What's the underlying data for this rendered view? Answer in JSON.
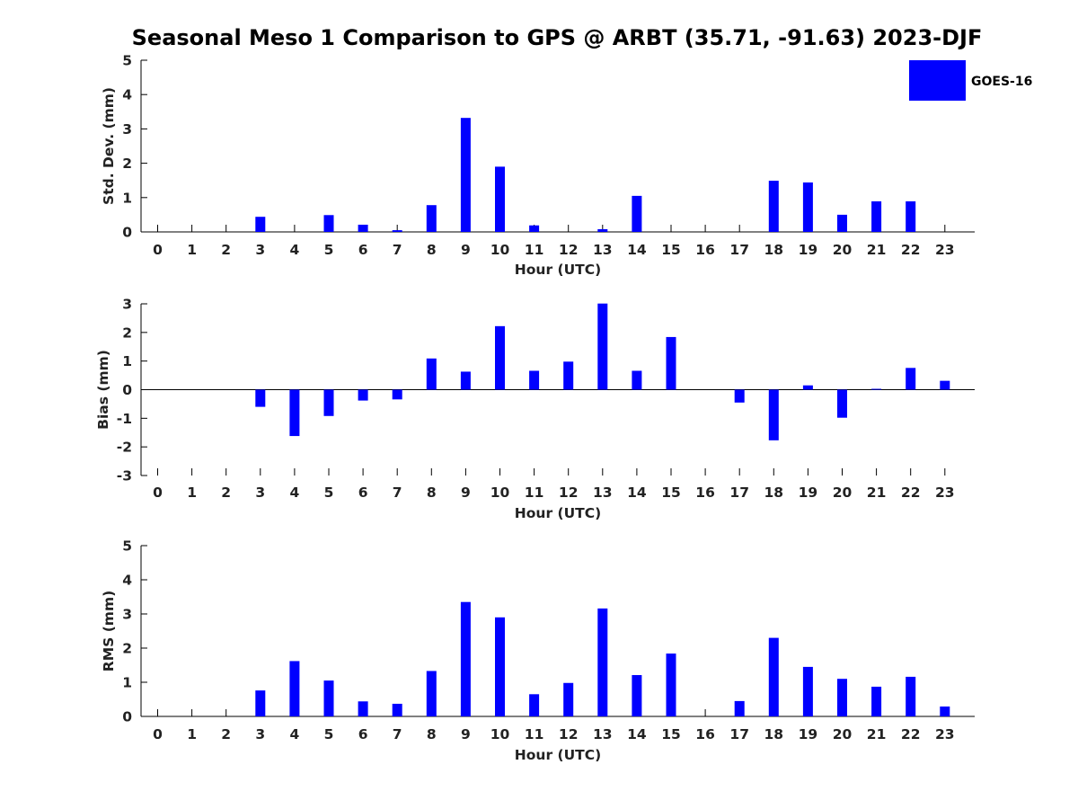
{
  "title": "Seasonal Meso 1 Comparison to GPS @ ARBT (35.71, -91.63) 2023-DJF",
  "colors": {
    "bar": "#0000ff",
    "axis": "#000000"
  },
  "chart_data": [
    {
      "type": "bar",
      "id": "stddev",
      "xlabel": "Hour (UTC)",
      "ylabel": "Std. Dev. (mm)",
      "ylim": [
        0,
        5
      ],
      "yticks": [
        0,
        1,
        2,
        3,
        4,
        5
      ],
      "categories": [
        "0",
        "1",
        "2",
        "3",
        "4",
        "5",
        "6",
        "7",
        "8",
        "9",
        "10",
        "11",
        "12",
        "13",
        "14",
        "15",
        "16",
        "17",
        "18",
        "19",
        "20",
        "21",
        "22",
        "23"
      ],
      "legend": {
        "placement": "top-right",
        "entries": [
          {
            "name": "GOES-16",
            "color": "#0000ff"
          }
        ]
      },
      "series": [
        {
          "name": "GOES-16",
          "values": [
            null,
            null,
            null,
            0.44,
            null,
            0.49,
            0.21,
            0.05,
            0.78,
            3.32,
            1.9,
            0.19,
            null,
            0.08,
            1.05,
            null,
            null,
            null,
            1.49,
            1.44,
            0.5,
            0.89,
            0.89,
            null
          ]
        }
      ]
    },
    {
      "type": "bar",
      "id": "bias",
      "xlabel": "Hour (UTC)",
      "ylabel": "Bias (mm)",
      "ylim": [
        -3,
        3
      ],
      "yticks": [
        -3,
        -2,
        -1,
        0,
        1,
        2,
        3
      ],
      "categories": [
        "0",
        "1",
        "2",
        "3",
        "4",
        "5",
        "6",
        "7",
        "8",
        "9",
        "10",
        "11",
        "12",
        "13",
        "14",
        "15",
        "16",
        "17",
        "18",
        "19",
        "20",
        "21",
        "22",
        "23"
      ],
      "series": [
        {
          "name": "GOES-16",
          "values": [
            null,
            null,
            null,
            -0.6,
            -1.62,
            -0.92,
            -0.38,
            -0.34,
            1.09,
            0.63,
            2.22,
            0.66,
            0.98,
            3.01,
            0.66,
            1.84,
            null,
            -0.45,
            -1.77,
            0.15,
            -0.98,
            0.03,
            0.76,
            0.31
          ]
        }
      ]
    },
    {
      "type": "bar",
      "id": "rms",
      "xlabel": "Hour (UTC)",
      "ylabel": "RMS (mm)",
      "ylim": [
        0,
        5
      ],
      "yticks": [
        0,
        1,
        2,
        3,
        4,
        5
      ],
      "categories": [
        "0",
        "1",
        "2",
        "3",
        "4",
        "5",
        "6",
        "7",
        "8",
        "9",
        "10",
        "11",
        "12",
        "13",
        "14",
        "15",
        "16",
        "17",
        "18",
        "19",
        "20",
        "21",
        "22",
        "23"
      ],
      "series": [
        {
          "name": "GOES-16",
          "values": [
            null,
            null,
            null,
            0.76,
            1.62,
            1.05,
            0.44,
            0.37,
            1.33,
            3.35,
            2.9,
            0.65,
            0.98,
            3.16,
            1.21,
            1.84,
            null,
            0.45,
            2.3,
            1.45,
            1.1,
            0.87,
            1.16,
            0.29
          ]
        }
      ]
    }
  ]
}
